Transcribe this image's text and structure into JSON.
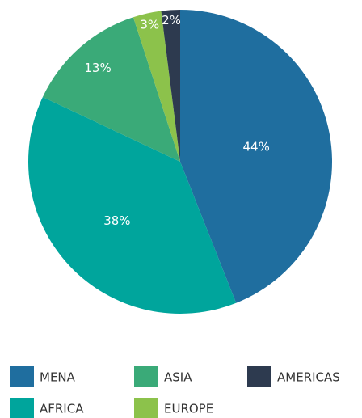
{
  "chart_data": {
    "type": "pie",
    "categories": [
      "MENA",
      "AFRICA",
      "ASIA",
      "EUROPE",
      "AMERICAS"
    ],
    "values": [
      44,
      38,
      13,
      3,
      2
    ],
    "value_labels": [
      "44%",
      "38%",
      "13%",
      "3%",
      "2%"
    ],
    "colors": [
      "#1f6e9f",
      "#00a59c",
      "#3aaa78",
      "#8cc24b",
      "#2d3a4f"
    ]
  }
}
